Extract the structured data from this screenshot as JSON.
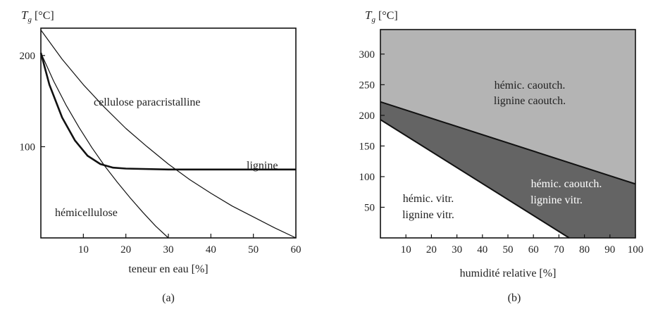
{
  "chart_data": [
    {
      "type": "line",
      "panel_label": "(a)",
      "y_title_symbol": "T",
      "y_title_subscript": "g",
      "y_title_unit": " [°C]",
      "xlabel": "teneur en eau [%]",
      "xlim": [
        0,
        60
      ],
      "ylim": [
        0,
        230
      ],
      "x_ticks": [
        10,
        20,
        30,
        40,
        50,
        60
      ],
      "y_ticks": [
        100,
        200
      ],
      "grid": false,
      "series": [
        {
          "name": "cellulose paracristalline",
          "x": [
            0,
            5,
            10,
            15,
            20,
            25,
            30,
            35,
            40,
            45,
            50,
            55,
            60
          ],
          "y": [
            228,
            196,
            168,
            143,
            120,
            100,
            81,
            64,
            49,
            35,
            23,
            11,
            0
          ]
        },
        {
          "name": "lignine",
          "x": [
            0,
            2,
            5,
            8,
            11,
            14,
            17,
            20,
            30,
            40,
            50,
            60
          ],
          "y": [
            203,
            168,
            132,
            107,
            90,
            81,
            77,
            76,
            75,
            75,
            75,
            75
          ]
        },
        {
          "name": "hémicellulose",
          "x": [
            0,
            3,
            6,
            9,
            12,
            15,
            18,
            21,
            24,
            27,
            30
          ],
          "y": [
            203,
            172,
            145,
            121,
            99,
            79,
            61,
            44,
            28,
            13,
            0
          ]
        }
      ]
    },
    {
      "type": "area",
      "panel_label": "(b)",
      "y_title_symbol": "T",
      "y_title_subscript": "g",
      "y_title_unit": " [°C]",
      "xlabel": "humidité relative [%]",
      "xlim": [
        0,
        100
      ],
      "ylim": [
        0,
        340
      ],
      "x_ticks": [
        10,
        20,
        30,
        40,
        50,
        60,
        70,
        80,
        90,
        100
      ],
      "y_ticks": [
        50,
        100,
        150,
        200,
        250,
        300
      ],
      "grid": false,
      "colors": {
        "top_region": "#b4b4b4",
        "middle_region": "#646464",
        "bottom_region": "#ffffff",
        "line": "#111111"
      },
      "boundaries": [
        {
          "x": [
            0,
            100
          ],
          "y": [
            222,
            88
          ]
        },
        {
          "x": [
            0,
            74
          ],
          "y": [
            193,
            0
          ]
        }
      ],
      "regions": [
        {
          "label_line1": "hémic. caoutch.",
          "label_line2": "lignine caoutch."
        },
        {
          "label_line1": "hémic. caoutch.",
          "label_line2": "lignine vitr."
        },
        {
          "label_line1": "hémic. vitr.",
          "label_line2": "lignine vitr."
        }
      ]
    }
  ]
}
